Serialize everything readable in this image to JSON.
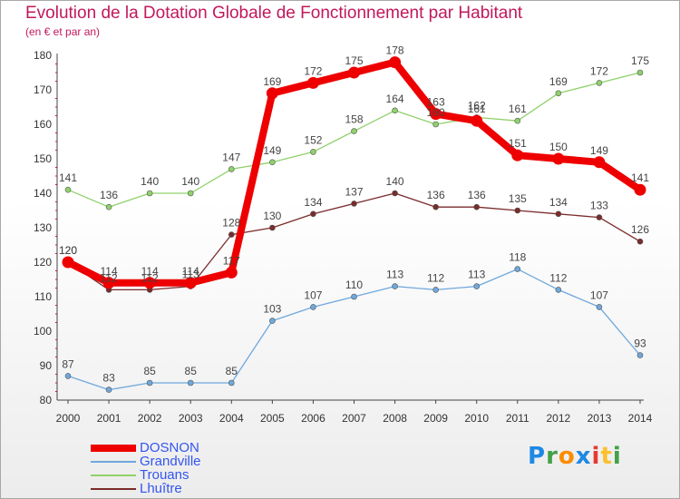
{
  "chart_data": {
    "type": "line",
    "title": "Evolution de la Dotation Globale de Fonctionnement par Habitant",
    "subtitle": "(en € et par an)",
    "x": [
      "2000",
      "2001",
      "2002",
      "2003",
      "2004",
      "2005",
      "2006",
      "2007",
      "2008",
      "2009",
      "2010",
      "2011",
      "2012",
      "2013",
      "2014"
    ],
    "ylim": [
      80,
      180
    ],
    "yticks": [
      80,
      90,
      100,
      110,
      120,
      130,
      140,
      150,
      160,
      170,
      180
    ],
    "grid": false,
    "legend_position": "bottom-left",
    "series": [
      {
        "name": "DOSNON",
        "color": "#ee0000",
        "values": [
          120,
          114,
          114,
          114,
          117,
          169,
          172,
          175,
          178,
          163,
          161,
          151,
          150,
          149,
          141
        ]
      },
      {
        "name": "Grandville",
        "color": "#6fa8dc",
        "values": [
          87,
          83,
          85,
          85,
          85,
          103,
          107,
          110,
          113,
          112,
          113,
          118,
          112,
          107,
          93
        ]
      },
      {
        "name": "Trouans",
        "color": "#8fd16a",
        "values": [
          141,
          136,
          140,
          140,
          147,
          149,
          152,
          158,
          164,
          160,
          162,
          161,
          169,
          172,
          175
        ]
      },
      {
        "name": "Lhuître",
        "color": "#7a2b2b",
        "values": [
          120,
          112,
          112,
          113,
          128,
          130,
          134,
          137,
          140,
          136,
          136,
          135,
          134,
          133,
          126
        ]
      }
    ]
  },
  "legend": {
    "items": [
      {
        "label": "DOSNON",
        "color": "#ee0000"
      },
      {
        "label": "Grandville",
        "color": "#6fa8dc"
      },
      {
        "label": "Trouans",
        "color": "#8fd16a"
      },
      {
        "label": "Lhuître",
        "color": "#7a2b2b"
      }
    ],
    "text_color": "#3355ee"
  },
  "brand": {
    "text": "Proxiti",
    "letter_colors": [
      "#1e88e5",
      "#43a047",
      "#fb8c00",
      "#1e88e5",
      "#e53935",
      "#fbc02d",
      "#43a047"
    ]
  }
}
